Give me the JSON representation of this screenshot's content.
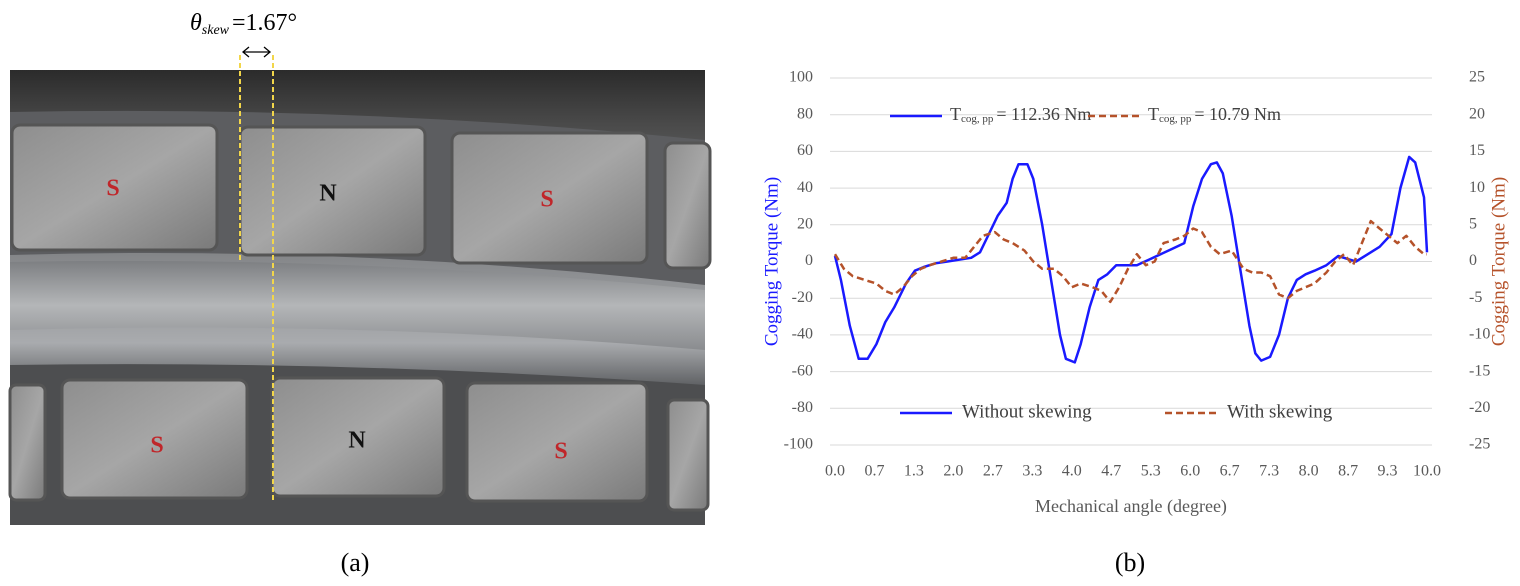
{
  "photo": {
    "annotation": {
      "symbol": "θ",
      "subscript": "skew",
      "text": "=1.67°"
    },
    "labels": [
      "S",
      "N",
      "S",
      "S",
      "N",
      "S"
    ]
  },
  "captions": [
    "(a)",
    "(b)"
  ],
  "chart_data": {
    "type": "line",
    "xlabel": "Mechanical angle (degree)",
    "ylabel": "Cogging Torque (Nm)",
    "y2label": "Cogging Torque (Nm)",
    "xlim": [
      0,
      10
    ],
    "ylim": [
      -100,
      100
    ],
    "y2lim": [
      -25,
      25
    ],
    "xticks": [
      {
        "value": 0,
        "label": "0.0"
      },
      {
        "value": 0.667,
        "label": "0.7"
      },
      {
        "value": 1.333,
        "label": "1.3"
      },
      {
        "value": 2,
        "label": "2.0"
      },
      {
        "value": 2.667,
        "label": "2.7"
      },
      {
        "value": 3.333,
        "label": "3.3"
      },
      {
        "value": 4,
        "label": "4.0"
      },
      {
        "value": 4.667,
        "label": "4.7"
      },
      {
        "value": 5.333,
        "label": "5.3"
      },
      {
        "value": 6,
        "label": "6.0"
      },
      {
        "value": 6.667,
        "label": "6.7"
      },
      {
        "value": 7.333,
        "label": "7.3"
      },
      {
        "value": 8,
        "label": "8.0"
      },
      {
        "value": 8.667,
        "label": "8.7"
      },
      {
        "value": 9.333,
        "label": "9.3"
      },
      {
        "value": 10,
        "label": "10.0"
      }
    ],
    "yticks": [
      -100,
      -80,
      -60,
      -40,
      -20,
      0,
      20,
      40,
      60,
      80,
      100
    ],
    "y2ticks": [
      -25,
      -20,
      -15,
      -10,
      -5,
      0,
      5,
      10,
      15,
      20,
      25
    ],
    "grid": true,
    "annotations": [
      {
        "base": "T",
        "subscript": "cog, pp",
        "text": "= 112.36 Nm"
      },
      {
        "base": "T",
        "subscript": "cog, pp",
        "text": "= 10.79 Nm"
      }
    ],
    "series": [
      {
        "name": "Without skewing",
        "color": "#1a1aff",
        "style": "solid",
        "x": [
          0,
          0.1,
          0.25,
          0.4,
          0.55,
          0.7,
          0.85,
          1.0,
          1.2,
          1.35,
          1.5,
          1.7,
          1.9,
          2.1,
          2.3,
          2.45,
          2.6,
          2.75,
          2.9,
          3.0,
          3.1,
          3.25,
          3.35,
          3.5,
          3.65,
          3.8,
          3.9,
          4.05,
          4.15,
          4.3,
          4.45,
          4.6,
          4.75,
          4.9,
          5.1,
          5.3,
          5.5,
          5.7,
          5.9,
          6.05,
          6.2,
          6.35,
          6.45,
          6.55,
          6.7,
          6.85,
          7.0,
          7.1,
          7.2,
          7.35,
          7.5,
          7.65,
          7.8,
          7.95,
          8.1,
          8.3,
          8.5,
          8.7,
          8.8,
          9.0,
          9.2,
          9.4,
          9.55,
          9.7,
          9.8,
          9.95,
          10
        ],
        "values": [
          3,
          -10,
          -35,
          -53,
          -53,
          -45,
          -33,
          -25,
          -12,
          -5,
          -3,
          -1,
          0,
          1,
          2,
          5,
          15,
          25,
          32,
          45,
          53,
          53,
          45,
          20,
          -10,
          -40,
          -53,
          -55,
          -45,
          -25,
          -10,
          -7,
          -2,
          -2,
          -2,
          1,
          4,
          7,
          10,
          30,
          45,
          53,
          54,
          48,
          25,
          -5,
          -35,
          -50,
          -54,
          -52,
          -40,
          -20,
          -10,
          -7,
          -5,
          -2,
          3,
          1,
          0,
          4,
          8,
          15,
          40,
          57,
          54,
          35,
          5
        ]
      },
      {
        "name": "With skewing",
        "color": "#b5522a",
        "style": "dashed",
        "axis": "y2",
        "x": [
          0,
          0.15,
          0.3,
          0.5,
          0.7,
          0.85,
          1.0,
          1.15,
          1.3,
          1.45,
          1.6,
          1.8,
          2.0,
          2.2,
          2.35,
          2.5,
          2.7,
          2.85,
          3.0,
          3.2,
          3.35,
          3.5,
          3.7,
          3.85,
          4.0,
          4.15,
          4.35,
          4.5,
          4.65,
          4.8,
          4.95,
          5.1,
          5.25,
          5.4,
          5.55,
          5.75,
          5.9,
          6.05,
          6.2,
          6.35,
          6.5,
          6.7,
          6.9,
          7.05,
          7.2,
          7.35,
          7.5,
          7.65,
          7.8,
          7.95,
          8.1,
          8.3,
          8.45,
          8.6,
          8.75,
          8.9,
          9.05,
          9.2,
          9.35,
          9.5,
          9.65,
          9.8,
          9.95,
          10
        ],
        "values": [
          1,
          -1,
          -2,
          -2.5,
          -3,
          -4,
          -4.5,
          -3.5,
          -2,
          -1,
          -0.5,
          0,
          0.5,
          0.5,
          2,
          3.5,
          4,
          3,
          2.5,
          1.5,
          0,
          -1,
          -1,
          -2,
          -3.5,
          -3,
          -3.5,
          -4,
          -5.5,
          -3.5,
          -1,
          1,
          -0.5,
          0,
          2.5,
          3,
          3.5,
          4.5,
          4,
          2,
          1,
          1.5,
          -1,
          -1.5,
          -1.5,
          -2,
          -4.5,
          -5,
          -4,
          -3.5,
          -3,
          -1.5,
          0,
          1,
          -0.5,
          2.5,
          5.5,
          4.5,
          3.5,
          2.5,
          3.5,
          2,
          1,
          1
        ]
      }
    ]
  }
}
